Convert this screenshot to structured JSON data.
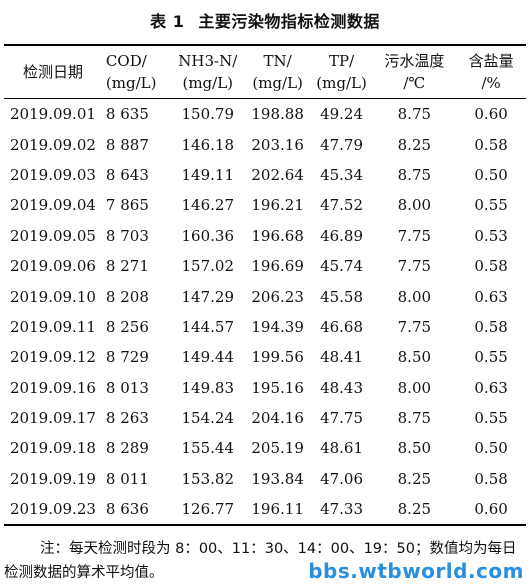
{
  "title": {
    "number": "表 1",
    "text": "主要污染物指标检测数据"
  },
  "headers": [
    {
      "line1": "检测日期",
      "line2": ""
    },
    {
      "line1": "COD/",
      "line2": "(mg/L)"
    },
    {
      "line1": "NH3-N/",
      "line2": "(mg/L)"
    },
    {
      "line1": "TN/",
      "line2": "(mg/L)"
    },
    {
      "line1": "TP/",
      "line2": "(mg/L)"
    },
    {
      "line1": "污水温度",
      "line2": "/℃"
    },
    {
      "line1": "含盐量",
      "line2": "/%"
    }
  ],
  "rows": [
    [
      "2019.09.01",
      "8 635",
      "150.79",
      "198.88",
      "49.24",
      "8.75",
      "0.60"
    ],
    [
      "2019.09.02",
      "8 887",
      "146.18",
      "203.16",
      "47.79",
      "8.25",
      "0.58"
    ],
    [
      "2019.09.03",
      "8 643",
      "149.11",
      "202.64",
      "45.34",
      "8.75",
      "0.50"
    ],
    [
      "2019.09.04",
      "7 865",
      "146.27",
      "196.21",
      "47.52",
      "8.00",
      "0.55"
    ],
    [
      "2019.09.05",
      "8 703",
      "160.36",
      "196.68",
      "46.89",
      "7.75",
      "0.53"
    ],
    [
      "2019.09.06",
      "8 271",
      "157.02",
      "196.69",
      "45.74",
      "7.75",
      "0.58"
    ],
    [
      "2019.09.10",
      "8 208",
      "147.29",
      "206.23",
      "45.58",
      "8.00",
      "0.63"
    ],
    [
      "2019.09.11",
      "8 256",
      "144.57",
      "194.39",
      "46.68",
      "7.75",
      "0.58"
    ],
    [
      "2019.09.12",
      "8 729",
      "149.44",
      "199.56",
      "48.41",
      "8.50",
      "0.55"
    ],
    [
      "2019.09.16",
      "8 013",
      "149.83",
      "195.16",
      "48.43",
      "8.00",
      "0.63"
    ],
    [
      "2019.09.17",
      "8 263",
      "154.24",
      "204.16",
      "47.75",
      "8.75",
      "0.55"
    ],
    [
      "2019.09.18",
      "8 289",
      "155.44",
      "205.19",
      "48.61",
      "8.50",
      "0.50"
    ],
    [
      "2019.09.19",
      "8 011",
      "153.82",
      "193.84",
      "47.06",
      "8.25",
      "0.58"
    ],
    [
      "2019.09.23",
      "8 636",
      "126.77",
      "196.11",
      "47.33",
      "8.25",
      "0.60"
    ]
  ],
  "note": "注：每天检测时段为 8：00、11：30、14：00、19：50；数值均为每日检测数据的算术平均值。",
  "watermark": "bbs.wtbworld.com"
}
